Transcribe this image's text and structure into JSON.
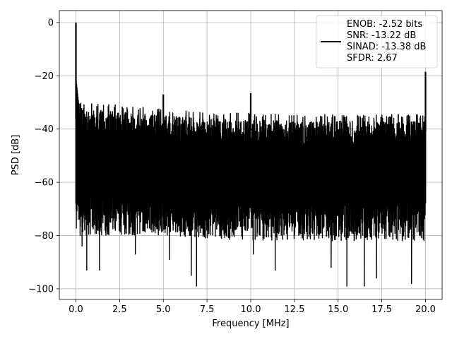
{
  "chart_data": {
    "type": "line",
    "xlabel": "Frequency [MHz]",
    "ylabel": "PSD [dB]",
    "xlim": [
      -0.95,
      20.95
    ],
    "ylim": [
      -104,
      4.5
    ],
    "xticks": [
      0.0,
      2.5,
      5.0,
      7.5,
      10.0,
      12.5,
      15.0,
      17.5,
      20.0
    ],
    "xtick_labels": [
      "0.0",
      "2.5",
      "5.0",
      "7.5",
      "10.0",
      "12.5",
      "15.0",
      "17.5",
      "20.0"
    ],
    "yticks": [
      0,
      -20,
      -40,
      -60,
      -80,
      -100
    ],
    "ytick_labels": [
      "0",
      "−20",
      "−40",
      "−60",
      "−80",
      "−100"
    ],
    "grid": true,
    "legend_position": "top-right",
    "series": [
      {
        "color": "#000000",
        "noise_upper_envelope": {
          "x": [
            0.1,
            2.5,
            5.0,
            7.5,
            10.0,
            12.5,
            15.0,
            17.5,
            19.9
          ],
          "y": [
            -31,
            -32.5,
            -34,
            -35,
            -35.5,
            -36,
            -36,
            -36,
            -36
          ]
        },
        "noise_lower_envelope": {
          "x": [
            0.1,
            2.5,
            5.0,
            7.5,
            10.0,
            12.5,
            15.0,
            17.5,
            19.9
          ],
          "y": [
            -80,
            -80,
            -80,
            -81,
            -82,
            -82,
            -82,
            -82,
            -82
          ]
        },
        "spurs": [
          {
            "x": 0.0,
            "y": 0
          },
          {
            "x": 5.0,
            "y": -27
          },
          {
            "x": 10.0,
            "y": -26.5
          },
          {
            "x": 20.0,
            "y": -18.5
          }
        ],
        "deep_nulls": [
          {
            "x": 0.35,
            "y": -84
          },
          {
            "x": 0.62,
            "y": -93
          },
          {
            "x": 1.35,
            "y": -93
          },
          {
            "x": 3.4,
            "y": -87
          },
          {
            "x": 5.35,
            "y": -89
          },
          {
            "x": 6.6,
            "y": -95
          },
          {
            "x": 6.9,
            "y": -99
          },
          {
            "x": 10.15,
            "y": -87
          },
          {
            "x": 11.4,
            "y": -93
          },
          {
            "x": 14.6,
            "y": -92
          },
          {
            "x": 15.5,
            "y": -99
          },
          {
            "x": 16.5,
            "y": -99
          },
          {
            "x": 17.2,
            "y": -96
          },
          {
            "x": 19.2,
            "y": -98
          }
        ]
      }
    ],
    "legend": {
      "lines": [
        "ENOB: -2.52 bits",
        "SNR: -13.22 dB",
        "SINAD: -13.38 dB",
        "SFDR: 2.67"
      ]
    }
  }
}
